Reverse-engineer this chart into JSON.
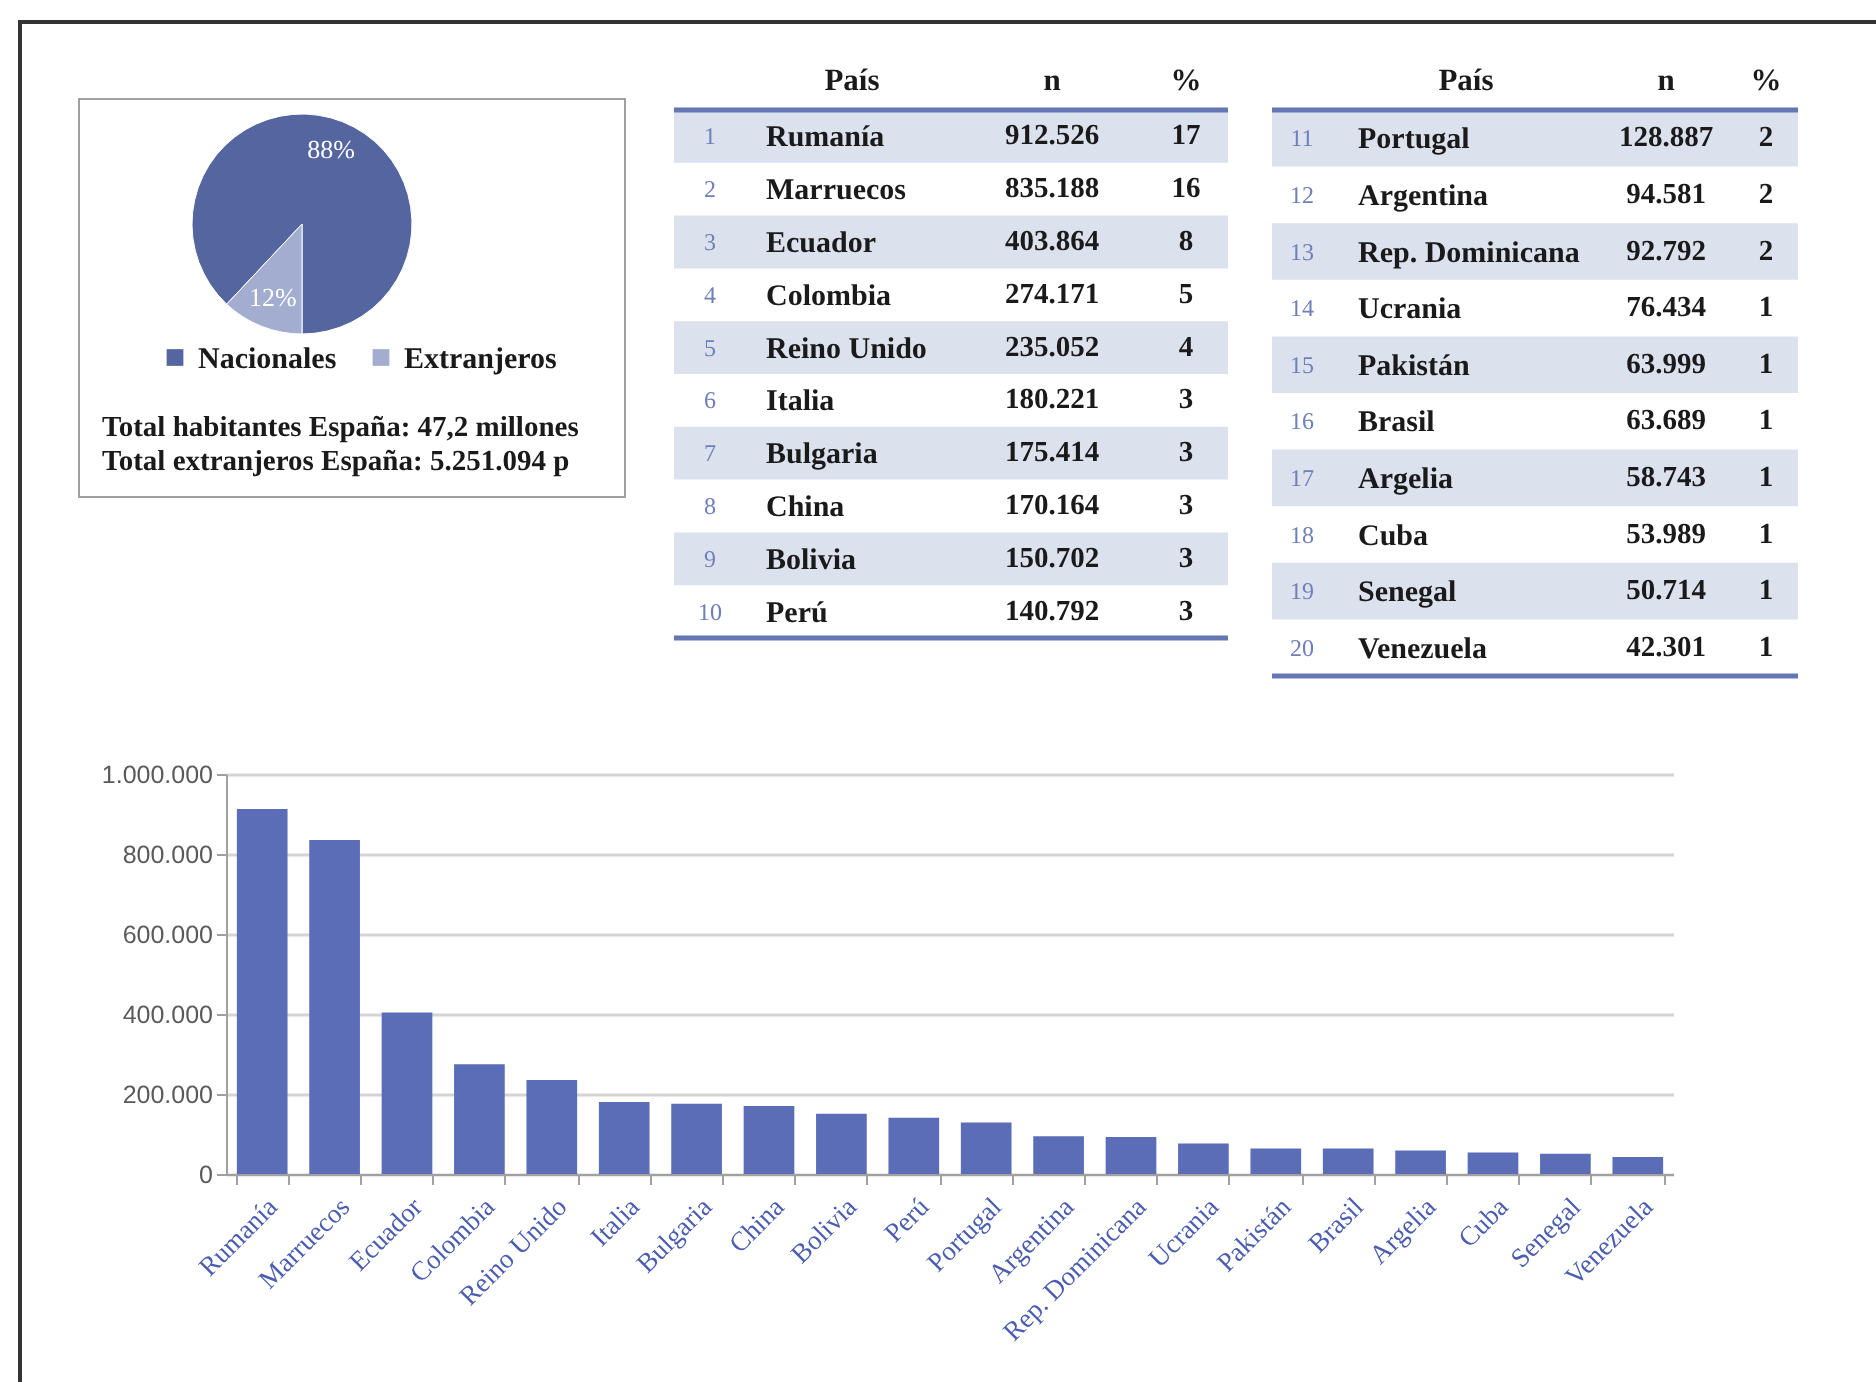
{
  "chart_data": [
    {
      "type": "pie",
      "categories": [
        "Nacionales",
        "Extranjeros"
      ],
      "values": [
        88,
        12
      ],
      "value_labels": [
        "88%",
        "12%"
      ],
      "colors": [
        "#55659f",
        "#a3add0"
      ],
      "legend": "bottom",
      "annotations": [
        "Total habitantes España: 47,2 millones",
        "Total extranjeros España: 5.251.094 p"
      ]
    },
    {
      "type": "other",
      "xlabel": "País",
      "categories": [
        "Rumanía",
        "Marruecos",
        "Ecuador",
        "Colombia",
        "Reino Unido",
        "Italia",
        "Bulgaria",
        "China",
        "Bolivia",
        "Perú"
      ],
      "series": [
        {
          "values": [
            1,
            2,
            3,
            4,
            5,
            6,
            7,
            8,
            9,
            10
          ]
        },
        {
          "name": "n",
          "values": [
            912526,
            835188,
            403864,
            274171,
            235052,
            180221,
            175414,
            170164,
            150702,
            140792
          ],
          "value_labels": [
            "912.526",
            "835.188",
            "403.864",
            "274.171",
            "235.052",
            "180.221",
            "175.414",
            "170.164",
            "150.702",
            "140.792"
          ]
        },
        {
          "name": "%",
          "values": [
            17,
            16,
            8,
            5,
            4,
            3,
            3,
            3,
            3,
            3
          ]
        }
      ],
      "data_labels": true
    },
    {
      "type": "other",
      "xlabel": "País",
      "categories": [
        "Portugal",
        "Argentina",
        "Rep. Dominicana",
        "Ucrania",
        "Pakistán",
        "Brasil",
        "Argelia",
        "Cuba",
        "Senegal",
        "Venezuela"
      ],
      "series": [
        {
          "values": [
            11,
            12,
            13,
            14,
            15,
            16,
            17,
            18,
            19,
            20
          ]
        },
        {
          "name": "n",
          "values": [
            128887,
            94581,
            92792,
            76434,
            63999,
            63689,
            58743,
            53989,
            50714,
            42301
          ],
          "value_labels": [
            "128.887",
            "94.581",
            "92.792",
            "76.434",
            "63.999",
            "63.689",
            "58.743",
            "53.989",
            "50.714",
            "42.301"
          ]
        },
        {
          "name": "%",
          "values": [
            2,
            2,
            2,
            1,
            1,
            1,
            1,
            1,
            1,
            1
          ]
        }
      ],
      "data_labels": true
    },
    {
      "type": "bar",
      "categories": [
        "Rumanía",
        "Marruecos",
        "Ecuador",
        "Colombia",
        "Reino Unido",
        "Italia",
        "Bulgaria",
        "China",
        "Bolivia",
        "Perú",
        "Portugal",
        "Argentina",
        "Rep. Dominicana",
        "Ucrania",
        "Pakistán",
        "Brasil",
        "Argelia",
        "Cuba",
        "Senegal",
        "Venezuela"
      ],
      "values": [
        912526,
        835188,
        403864,
        274171,
        235052,
        180221,
        175414,
        170164,
        150702,
        140792,
        128887,
        94581,
        92792,
        76434,
        63999,
        63689,
        58743,
        53989,
        50714,
        42301
      ],
      "color": "#5a6db6",
      "ylim": [
        0,
        1000000
      ],
      "yticks": [
        0,
        {
          "value": 200000,
          "label": "200.000"
        },
        {
          "value": 400000,
          "label": "400.000"
        },
        {
          "value": 600000,
          "label": "600.000"
        },
        {
          "value": 800000,
          "label": "800.000"
        },
        {
          "value": 1000000,
          "label": "1.000.000"
        }
      ],
      "grid": "y"
    }
  ]
}
